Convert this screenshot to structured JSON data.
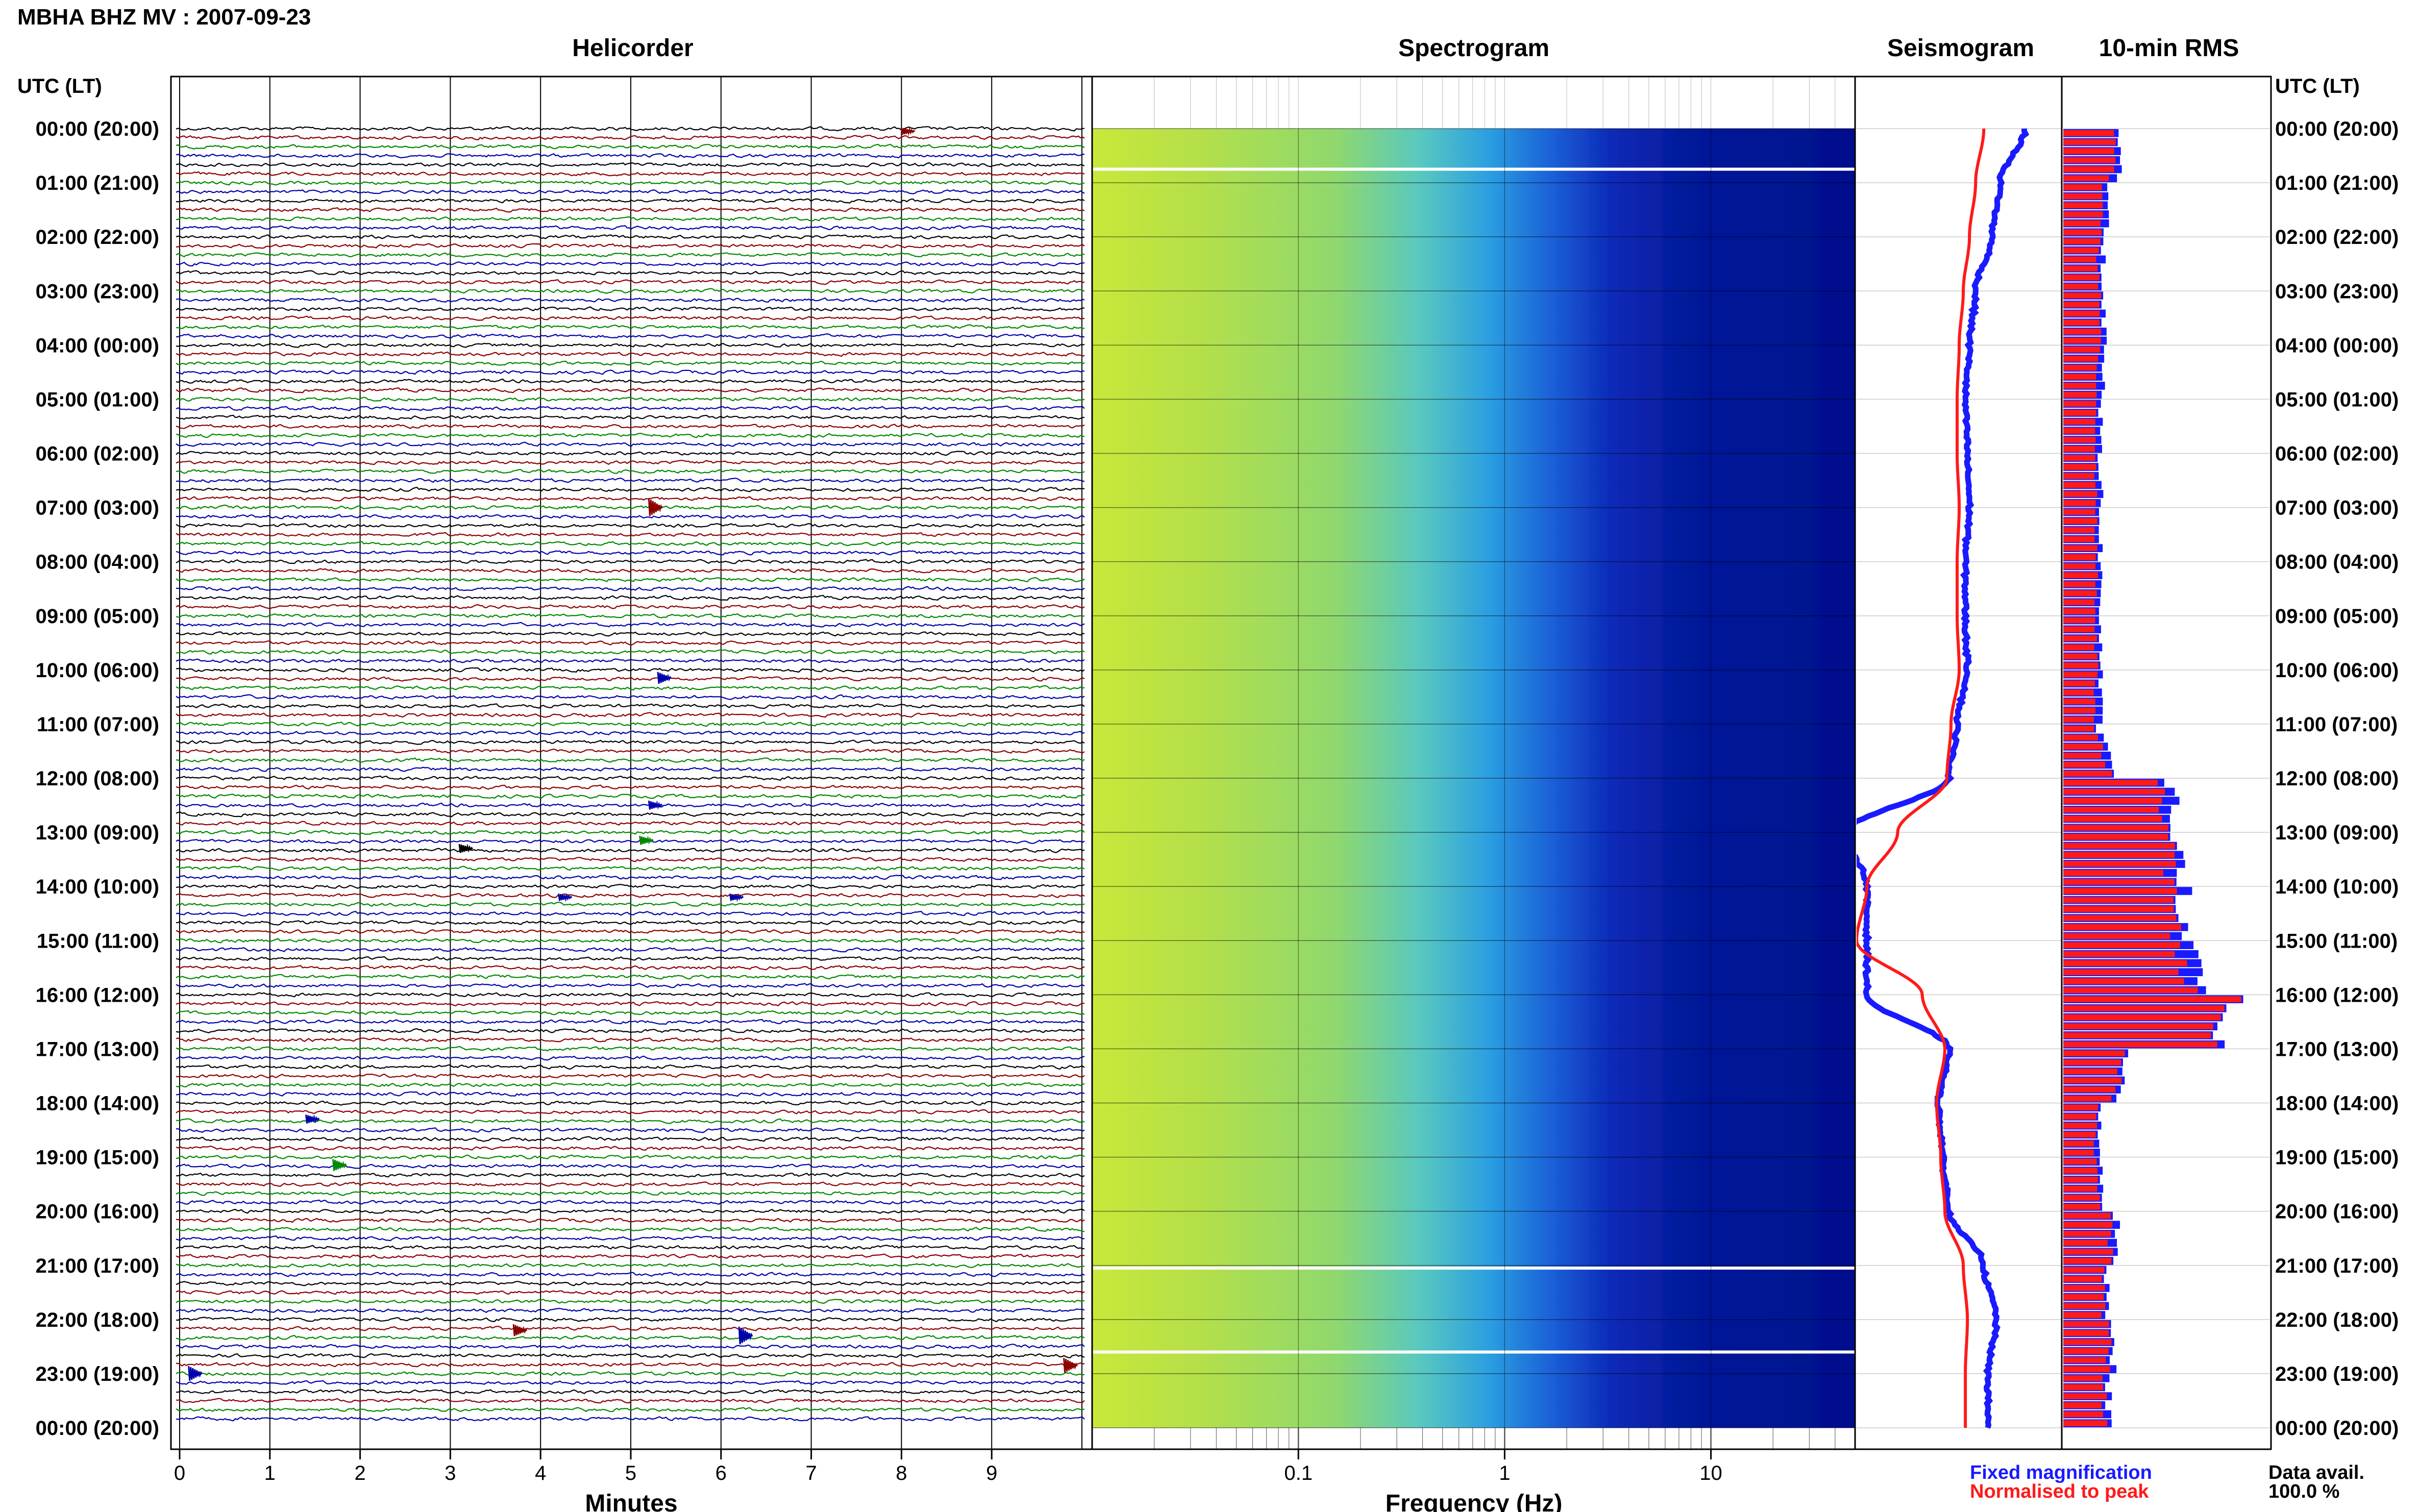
{
  "header": {
    "station_title": "MBHA BHZ MV : 2007-09-23",
    "time_axis_title_left": "UTC (LT)",
    "time_axis_title_right": "UTC (LT)"
  },
  "panels": {
    "helicorder": "Helicorder",
    "spectrogram": "Spectrogram",
    "seismogram": "Seismogram",
    "rms": "10-min RMS"
  },
  "time_labels": [
    "00:00 (20:00)",
    "01:00 (21:00)",
    "02:00 (22:00)",
    "03:00 (23:00)",
    "04:00 (00:00)",
    "05:00 (01:00)",
    "06:00 (02:00)",
    "07:00 (03:00)",
    "08:00 (04:00)",
    "09:00 (05:00)",
    "10:00 (06:00)",
    "11:00 (07:00)",
    "12:00 (08:00)",
    "13:00 (09:00)",
    "14:00 (10:00)",
    "15:00 (11:00)",
    "16:00 (12:00)",
    "17:00 (13:00)",
    "18:00 (14:00)",
    "19:00 (15:00)",
    "20:00 (16:00)",
    "21:00 (17:00)",
    "22:00 (18:00)",
    "23:00 (19:00)",
    "00:00 (20:00)"
  ],
  "legend": {
    "fixed_magnification": "Fixed magnification",
    "normalised_to_peak": "Normalised to peak",
    "data_avail_label": "Data avail.",
    "data_avail_value": "100.0 %"
  },
  "colors": {
    "trace_black": "#000000",
    "trace_red": "#8b0000",
    "trace_green": "#008800",
    "trace_blue": "#0000aa",
    "fixed": "#1a1aff",
    "normalised": "#ff1a1a",
    "spec_low": "#000f8c",
    "spec_high": "#ffff33"
  },
  "chart_data": [
    {
      "type": "line",
      "name": "helicorder",
      "x_ticks": [
        "0",
        "1",
        "2",
        "3",
        "4",
        "5",
        "6",
        "7",
        "8",
        "9"
      ],
      "xlabel": "Minutes",
      "xlim": [
        0,
        10
      ],
      "rows_per_hour": 6,
      "hours": 24,
      "trace_colors_cycle": [
        "black",
        "red",
        "green",
        "blue"
      ],
      "events": [
        {
          "hour": 7.0,
          "minute": 5.2,
          "color": "red",
          "amp": 3
        },
        {
          "hour": 10.15,
          "minute": 5.3,
          "color": "blue",
          "amp": 2
        },
        {
          "hour": 12.5,
          "minute": 5.2,
          "color": "blue",
          "amp": 1.5
        },
        {
          "hour": 13.3,
          "minute": 3.1,
          "color": "black",
          "amp": 1.5
        },
        {
          "hour": 13.15,
          "minute": 5.1,
          "color": "green",
          "amp": 1.5
        },
        {
          "hour": 14.2,
          "minute": 4.2,
          "color": "blue",
          "amp": 1.2
        },
        {
          "hour": 14.2,
          "minute": 6.1,
          "color": "blue",
          "amp": 1.2
        },
        {
          "hour": 18.3,
          "minute": 1.4,
          "color": "blue",
          "amp": 1.5
        },
        {
          "hour": 19.15,
          "minute": 1.7,
          "color": "green",
          "amp": 2
        },
        {
          "hour": 22.3,
          "minute": 6.2,
          "color": "blue",
          "amp": 3
        },
        {
          "hour": 22.2,
          "minute": 3.7,
          "color": "red",
          "amp": 2
        },
        {
          "hour": 23.0,
          "minute": 0.1,
          "color": "blue",
          "amp": 2.5
        },
        {
          "hour": 22.85,
          "minute": 9.8,
          "color": "red",
          "amp": 2.5
        },
        {
          "hour": 0.05,
          "minute": 8.0,
          "color": "red",
          "amp": 1.2
        }
      ]
    },
    {
      "type": "heatmap",
      "name": "spectrogram",
      "xlabel": "Frequency (Hz)",
      "x_scale": "log",
      "xlim": [
        0.01,
        50
      ],
      "x_tick_labels": [
        "0.1",
        "1",
        "10"
      ],
      "white_gap_rows_hour": [
        0.75,
        21.05,
        22.6
      ]
    },
    {
      "type": "line",
      "name": "seismogram",
      "series": [
        {
          "name": "Fixed magnification",
          "hours": [
            0,
            1,
            2,
            3,
            4,
            5,
            6,
            7,
            8,
            9,
            10,
            11,
            12,
            13,
            14,
            15,
            16,
            17,
            18,
            19,
            20,
            21,
            22,
            23,
            24
          ],
          "values": [
            0.82,
            0.7,
            0.66,
            0.58,
            0.55,
            0.53,
            0.54,
            0.55,
            0.53,
            0.53,
            0.54,
            0.49,
            0.45,
            -0.05,
            0.05,
            0.05,
            0.05,
            0.45,
            0.4,
            0.42,
            0.45,
            0.62,
            0.68,
            0.64,
            0.64
          ]
        },
        {
          "name": "Normalised to peak",
          "hours": [
            0,
            1,
            2,
            3,
            4,
            5,
            6,
            7,
            8,
            9,
            10,
            11,
            12,
            13,
            14,
            15,
            16,
            17,
            18,
            19,
            20,
            21,
            22,
            23,
            24
          ],
          "values": [
            0.62,
            0.58,
            0.55,
            0.52,
            0.5,
            0.49,
            0.49,
            0.5,
            0.49,
            0.49,
            0.5,
            0.46,
            0.44,
            0.2,
            0.05,
            0.0,
            0.32,
            0.43,
            0.39,
            0.41,
            0.43,
            0.52,
            0.54,
            0.53,
            0.53
          ]
        }
      ]
    },
    {
      "type": "bar",
      "name": "10-min RMS",
      "orientation": "horizontal",
      "bin_minutes": 10,
      "hourly_values_fixed": [
        0.28,
        0.22,
        0.19,
        0.2,
        0.19,
        0.18,
        0.18,
        0.18,
        0.18,
        0.18,
        0.18,
        0.17,
        0.52,
        0.55,
        0.58,
        0.6,
        0.88,
        0.3,
        0.18,
        0.18,
        0.26,
        0.21,
        0.25,
        0.22
      ],
      "hourly_values_normalised": [
        0.25,
        0.2,
        0.17,
        0.18,
        0.17,
        0.16,
        0.16,
        0.16,
        0.16,
        0.16,
        0.16,
        0.15,
        0.48,
        0.52,
        0.55,
        0.56,
        0.84,
        0.28,
        0.16,
        0.16,
        0.24,
        0.19,
        0.23,
        0.2
      ]
    }
  ]
}
